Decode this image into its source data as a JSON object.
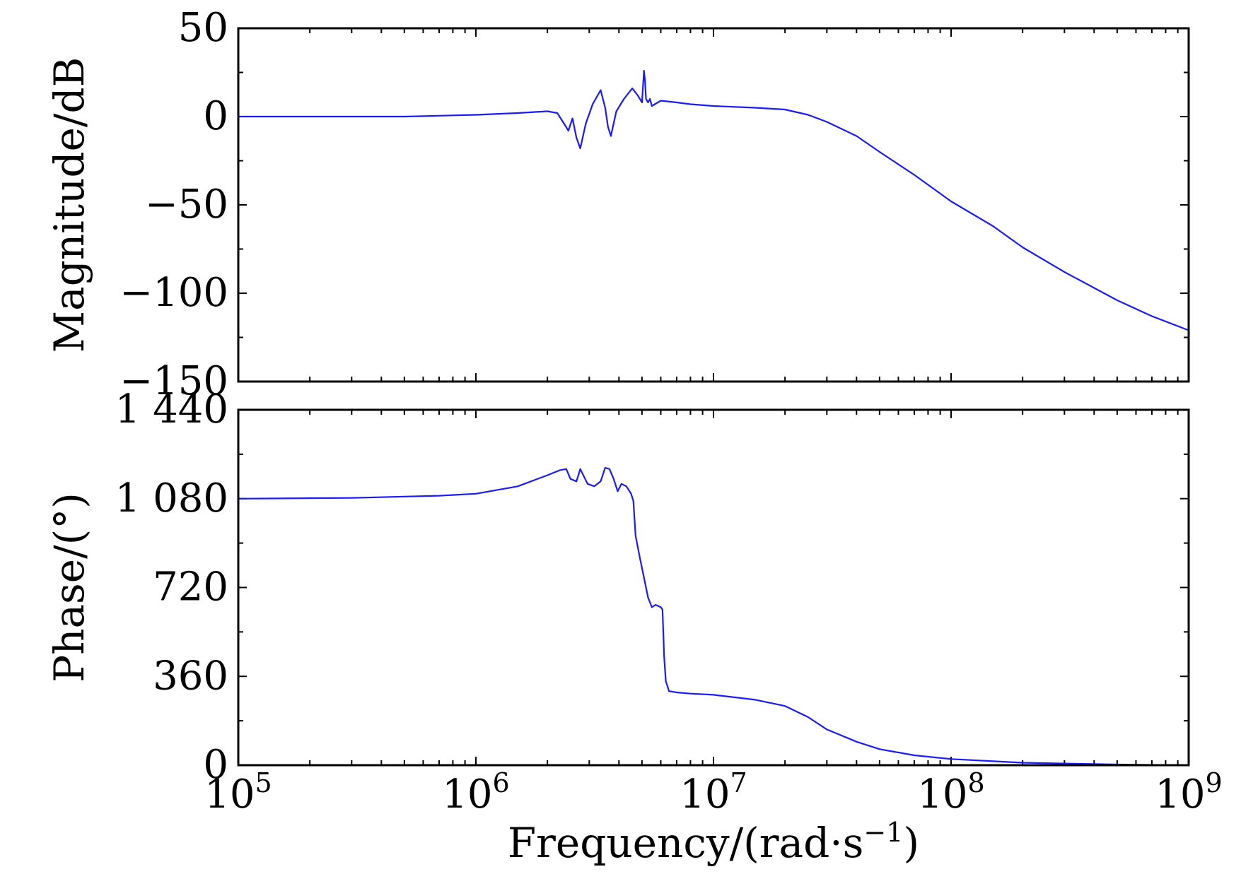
{
  "chart_data": [
    {
      "type": "line",
      "ylabel": "Magnitude/dB",
      "xlabel": "",
      "xscale": "log",
      "xlim": [
        100000,
        1000000000
      ],
      "ylim": [
        -150,
        50
      ],
      "yticks": [
        50,
        0,
        -50,
        -100,
        -150
      ],
      "ytick_labels": [
        "50",
        "0",
        "−50",
        "−100",
        "−150"
      ],
      "grid": false,
      "color": "#1a1aff",
      "series": [
        {
          "x": [
            100000,
            200000,
            500000,
            1000000,
            1500000,
            2000000,
            2200000,
            2350000,
            2450000,
            2550000,
            2650000,
            2750000,
            2900000,
            3100000,
            3350000,
            3500000,
            3600000,
            3700000,
            3900000,
            4200000,
            4550000,
            4800000,
            5000000,
            5100000,
            5150000,
            5200000,
            5300000,
            5400000,
            5500000,
            6000000,
            7000000,
            8000000,
            10000000,
            15000000,
            20000000,
            25000000,
            30000000,
            40000000,
            50000000,
            70000000,
            100000000,
            150000000,
            200000000,
            300000000,
            500000000,
            700000000,
            1000000000
          ],
          "y": [
            0,
            0,
            0,
            1,
            2,
            3,
            2,
            -4,
            -8,
            -1,
            -12,
            -18,
            -4,
            7,
            15,
            5,
            -6,
            -11,
            3,
            10,
            16,
            12,
            8,
            26,
            20,
            10,
            8,
            10,
            6,
            9,
            8,
            7,
            6,
            5,
            4,
            1,
            -3,
            -11,
            -20,
            -33,
            -48,
            -62,
            -74,
            -88,
            -104,
            -113,
            -121
          ]
        }
      ]
    },
    {
      "type": "line",
      "xlabel": "Frequency/(rad·s",
      "xlabel_sup": "−1",
      "xlabel_close": ")",
      "ylabel": "Phase/(°)",
      "xscale": "log",
      "xlim": [
        100000,
        1000000000
      ],
      "ylim": [
        0,
        1440
      ],
      "yticks": [
        0,
        360,
        720,
        1080,
        1440
      ],
      "ytick_labels": [
        "0",
        "360",
        "720",
        "1 080",
        "1 440"
      ],
      "xticks": [
        100000,
        1000000,
        10000000,
        100000000,
        1000000000
      ],
      "xtick_bases": [
        "10",
        "10",
        "10",
        "10",
        "10"
      ],
      "xtick_exponents": [
        "5",
        "6",
        "7",
        "8",
        "9"
      ],
      "grid": false,
      "color": "#1a1aff",
      "series": [
        {
          "x": [
            100000,
            300000,
            700000,
            1000000,
            1500000,
            2000000,
            2250000,
            2400000,
            2500000,
            2650000,
            2750000,
            2950000,
            3150000,
            3350000,
            3500000,
            3650000,
            3800000,
            3950000,
            4100000,
            4300000,
            4500000,
            4600000,
            4700000,
            4900000,
            5100000,
            5300000,
            5500000,
            5700000,
            6000000,
            6100000,
            6200000,
            6300000,
            6400000,
            6500000,
            7000000,
            8000000,
            10000000,
            15000000,
            20000000,
            25000000,
            30000000,
            40000000,
            50000000,
            70000000,
            100000000,
            200000000,
            500000000,
            1000000000
          ],
          "y": [
            1080,
            1083,
            1092,
            1100,
            1130,
            1175,
            1195,
            1200,
            1160,
            1150,
            1200,
            1140,
            1130,
            1150,
            1205,
            1200,
            1160,
            1110,
            1140,
            1130,
            1100,
            1070,
            930,
            840,
            760,
            680,
            640,
            650,
            640,
            630,
            440,
            340,
            320,
            300,
            295,
            290,
            285,
            265,
            240,
            195,
            145,
            95,
            65,
            40,
            25,
            10,
            3,
            0
          ]
        }
      ]
    }
  ]
}
